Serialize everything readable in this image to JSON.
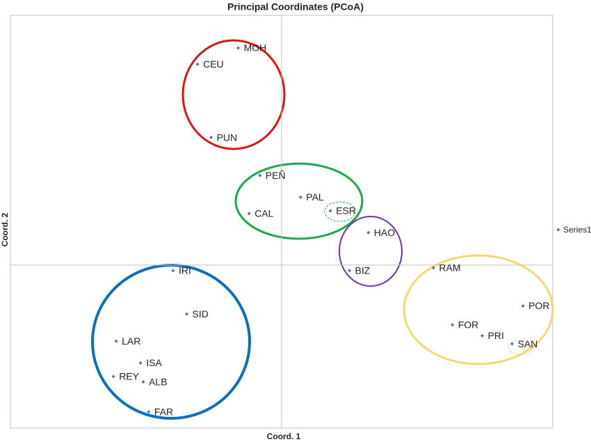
{
  "chart_data": {
    "type": "scatter",
    "title": "Principal Coordinates (PCoA)",
    "xlabel": "Coord. 1",
    "ylabel": "Coord. 2",
    "xlim": [
      -1,
      1
    ],
    "ylim": [
      -0.6,
      0.92
    ],
    "legend": "right",
    "series": [
      {
        "name": "Series1",
        "color": "#4472c4",
        "labels": [
          "MOH",
          "CEU",
          "PUN",
          "PEÑ",
          "PAL",
          "CAL",
          "ESR",
          "HAO",
          "BIZ",
          "IRI",
          "SID",
          "LAR",
          "ISA",
          "REY",
          "ALB",
          "FAR",
          "RAM",
          "POR",
          "FOR",
          "PRI",
          "SAN"
        ],
        "x": [
          -0.16,
          -0.31,
          -0.26,
          -0.08,
          0.07,
          -0.12,
          0.18,
          0.32,
          0.25,
          -0.4,
          -0.35,
          -0.61,
          -0.52,
          -0.62,
          -0.51,
          -0.49,
          0.56,
          0.89,
          0.63,
          0.74,
          0.85
        ],
        "values": [
          0.8,
          0.74,
          0.47,
          0.33,
          0.25,
          0.19,
          0.2,
          0.12,
          -0.02,
          -0.02,
          -0.18,
          -0.28,
          -0.36,
          -0.41,
          -0.43,
          -0.54,
          -0.01,
          -0.15,
          -0.22,
          -0.26,
          -0.29
        ]
      }
    ]
  }
}
